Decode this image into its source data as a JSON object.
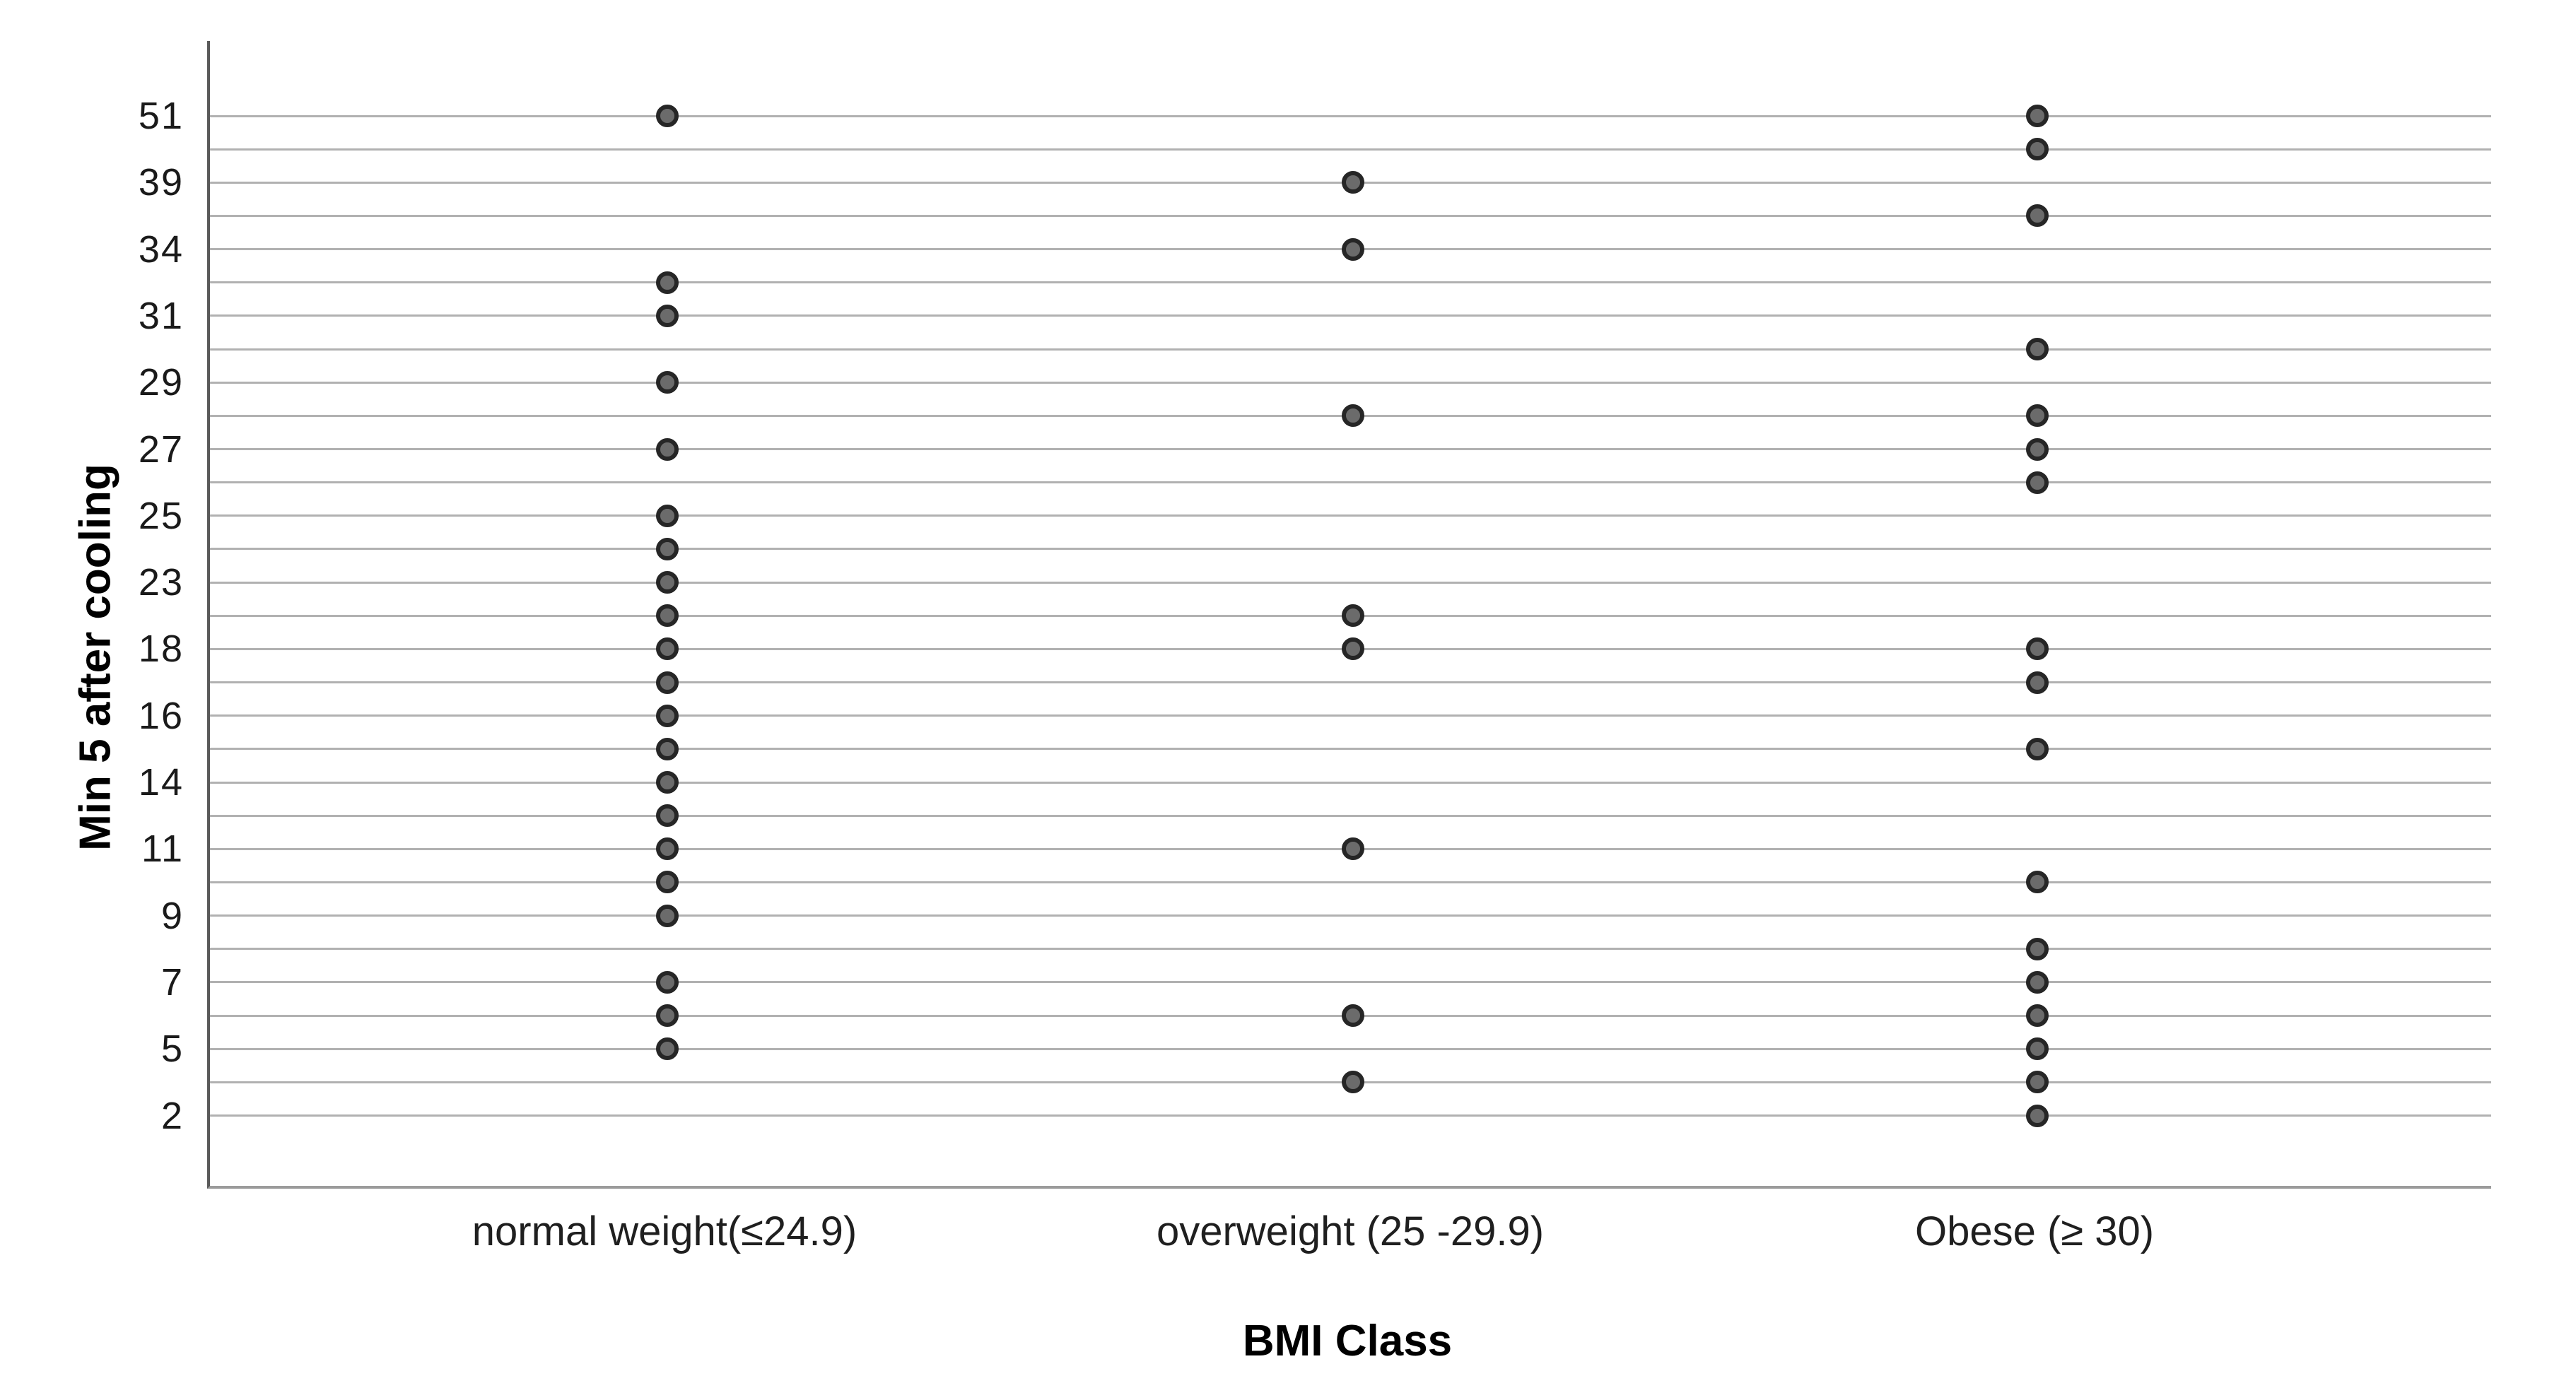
{
  "chart_data": {
    "type": "scatter",
    "subtype": "categorical-dot-plot",
    "title": "",
    "xlabel": "BMI Class",
    "ylabel": "Min 5 after cooling",
    "categories": [
      "normal weight(≤24.9)",
      "overweight (25 -29.9)",
      "Obese (≥ 30)"
    ],
    "y_axis": {
      "direction": "top-to-bottom",
      "rows_total": 31,
      "row_labels": [
        "51",
        "",
        "39",
        "",
        "34",
        "",
        "31",
        "",
        "29",
        "",
        "27",
        "",
        "25",
        "",
        "23",
        "",
        "18",
        "",
        "16",
        "",
        "14",
        "",
        "11",
        "",
        "9",
        "",
        "7",
        "",
        "5",
        "",
        "2"
      ],
      "note": "31 evenly spaced value rows, every other row labeled; each row has a horizontal gridline"
    },
    "series": [
      {
        "name": "normal weight(≤24.9)",
        "dot_rows": [
          0,
          5,
          6,
          8,
          10,
          12,
          13,
          14,
          15,
          16,
          17,
          18,
          19,
          20,
          21,
          22,
          23,
          24,
          26,
          27,
          28
        ]
      },
      {
        "name": "overweight (25 -29.9)",
        "dot_rows": [
          2,
          4,
          9,
          15,
          16,
          22,
          27,
          29
        ]
      },
      {
        "name": "Obese (≥ 30)",
        "dot_rows": [
          0,
          1,
          3,
          7,
          9,
          10,
          11,
          16,
          17,
          19,
          23,
          25,
          26,
          27,
          28,
          29,
          30
        ]
      }
    ],
    "legend": "none",
    "grid": "horizontal-only",
    "colors": {
      "background": "#ffffff",
      "gridline": "#b1b1b1",
      "y_axis_spine": "#5a5a5a",
      "x_axis_spine": "#9b9b9b",
      "dot_fill": "#6b6b6b",
      "dot_ring": "#262626",
      "tick_text": "#1a1a1a",
      "title_text": "#000000"
    }
  }
}
